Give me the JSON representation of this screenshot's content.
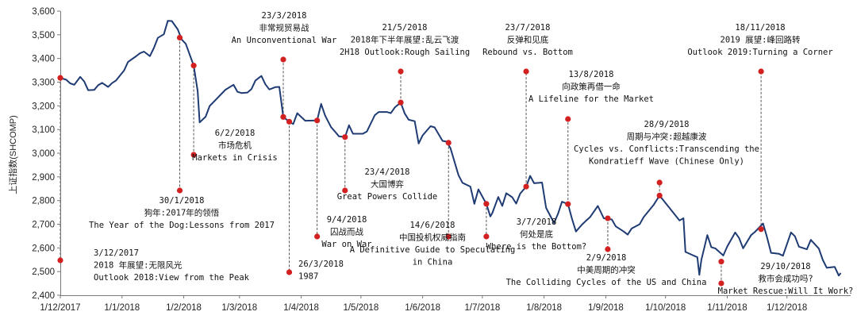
{
  "chart_data": {
    "type": "line",
    "ylabel": "上证指数(SHCOMP)",
    "ylim": [
      2400,
      3600
    ],
    "yticks": [
      2400,
      2500,
      2600,
      2700,
      2800,
      2900,
      3000,
      3100,
      3200,
      3300,
      3400,
      3500,
      3600
    ],
    "ytick_labels": [
      "2,400",
      "2,500",
      "2,600",
      "2,700",
      "2,800",
      "2,900",
      "3,000",
      "3,100",
      "3,200",
      "3,300",
      "3,400",
      "3,500",
      "3,600"
    ],
    "xlim": [
      "2017-12-01",
      "2018-12-31"
    ],
    "xticks": [
      "2017-12-01",
      "2018-01-01",
      "2018-02-01",
      "2018-03-01",
      "2018-04-01",
      "2018-05-01",
      "2018-06-01",
      "2018-07-01",
      "2018-08-01",
      "2018-09-01",
      "2018-10-01",
      "2018-11-01",
      "2018-12-01"
    ],
    "xtick_labels": [
      "1/12/2017",
      "1/1/2018",
      "1/2/2018",
      "1/3/2018",
      "1/4/2018",
      "1/5/2018",
      "1/6/2018",
      "1/7/2018",
      "1/8/2018",
      "1/9/2018",
      "1/10/2018",
      "1/11/2018",
      "1/12/2018"
    ],
    "grid": false,
    "series": [
      {
        "color": "#1f3b73",
        "x": [
          "2017-12-01",
          "2017-12-04",
          "2017-12-06",
          "2017-12-08",
          "2017-12-11",
          "2017-12-13",
          "2017-12-15",
          "2017-12-18",
          "2017-12-20",
          "2017-12-22",
          "2017-12-25",
          "2017-12-27",
          "2017-12-29",
          "2018-01-02",
          "2018-01-04",
          "2018-01-08",
          "2018-01-10",
          "2018-01-12",
          "2018-01-15",
          "2018-01-17",
          "2018-01-19",
          "2018-01-22",
          "2018-01-24",
          "2018-01-26",
          "2018-01-29",
          "2018-01-31",
          "2018-02-02",
          "2018-02-06",
          "2018-02-08",
          "2018-02-09",
          "2018-02-12",
          "2018-02-14",
          "2018-02-22",
          "2018-02-26",
          "2018-02-28",
          "2018-03-02",
          "2018-03-05",
          "2018-03-07",
          "2018-03-09",
          "2018-03-12",
          "2018-03-14",
          "2018-03-16",
          "2018-03-19",
          "2018-03-21",
          "2018-03-23",
          "2018-03-26",
          "2018-03-28",
          "2018-03-30",
          "2018-04-03",
          "2018-04-09",
          "2018-04-11",
          "2018-04-13",
          "2018-04-16",
          "2018-04-18",
          "2018-04-20",
          "2018-04-23",
          "2018-04-25",
          "2018-04-27",
          "2018-05-02",
          "2018-05-04",
          "2018-05-08",
          "2018-05-10",
          "2018-05-14",
          "2018-05-16",
          "2018-05-18",
          "2018-05-21",
          "2018-05-23",
          "2018-05-25",
          "2018-05-28",
          "2018-05-30",
          "2018-06-01",
          "2018-06-05",
          "2018-06-07",
          "2018-06-11",
          "2018-06-13",
          "2018-06-15",
          "2018-06-19",
          "2018-06-21",
          "2018-06-25",
          "2018-06-27",
          "2018-06-29",
          "2018-07-03",
          "2018-07-05",
          "2018-07-06",
          "2018-07-09",
          "2018-07-11",
          "2018-07-13",
          "2018-07-16",
          "2018-07-18",
          "2018-07-20",
          "2018-07-23",
          "2018-07-25",
          "2018-07-27",
          "2018-07-31",
          "2018-08-02",
          "2018-08-06",
          "2018-08-08",
          "2018-08-10",
          "2018-08-13",
          "2018-08-15",
          "2018-08-17",
          "2018-08-20",
          "2018-08-22",
          "2018-08-24",
          "2018-08-28",
          "2018-08-31",
          "2018-09-04",
          "2018-09-06",
          "2018-09-10",
          "2018-09-12",
          "2018-09-14",
          "2018-09-18",
          "2018-09-20",
          "2018-09-25",
          "2018-09-28",
          "2018-10-08",
          "2018-10-10",
          "2018-10-11",
          "2018-10-15",
          "2018-10-17",
          "2018-10-18",
          "2018-10-19",
          "2018-10-22",
          "2018-10-24",
          "2018-10-26",
          "2018-10-30",
          "2018-11-01",
          "2018-11-05",
          "2018-11-07",
          "2018-11-09",
          "2018-11-13",
          "2018-11-15",
          "2018-11-19",
          "2018-11-21",
          "2018-11-23",
          "2018-11-27",
          "2018-11-29",
          "2018-12-03",
          "2018-12-05",
          "2018-12-07",
          "2018-12-11",
          "2018-12-13",
          "2018-12-17",
          "2018-12-19",
          "2018-12-21",
          "2018-12-25",
          "2018-12-27",
          "2018-12-28"
        ],
        "values": [
          3318,
          3310,
          3295,
          3289,
          3322,
          3303,
          3266,
          3267,
          3287,
          3297,
          3280,
          3296,
          3307,
          3349,
          3385,
          3409,
          3422,
          3429,
          3410,
          3444,
          3487,
          3502,
          3559,
          3558,
          3523,
          3480,
          3462,
          3370,
          3262,
          3130,
          3154,
          3199,
          3268,
          3289,
          3259,
          3254,
          3256,
          3271,
          3307,
          3326,
          3291,
          3269,
          3279,
          3280,
          3153,
          3133,
          3123,
          3169,
          3137,
          3138,
          3208,
          3159,
          3110,
          3091,
          3071,
          3068,
          3118,
          3082,
          3082,
          3092,
          3161,
          3174,
          3174,
          3169,
          3193,
          3214,
          3168,
          3141,
          3135,
          3041,
          3075,
          3114,
          3109,
          3052,
          3049,
          3021,
          2907,
          2875,
          2859,
          2786,
          2847,
          2786,
          2733,
          2747,
          2815,
          2777,
          2831,
          2814,
          2787,
          2829,
          2859,
          2904,
          2873,
          2876,
          2769,
          2705,
          2744,
          2795,
          2785,
          2723,
          2669,
          2698,
          2714,
          2729,
          2777,
          2725,
          2720,
          2691,
          2669,
          2656,
          2682,
          2700,
          2730,
          2781,
          2821,
          2716,
          2725,
          2583,
          2568,
          2561,
          2486,
          2550,
          2654,
          2603,
          2598,
          2568,
          2606,
          2665,
          2641,
          2598,
          2654,
          2668,
          2703,
          2645,
          2579,
          2575,
          2567,
          2665,
          2649,
          2605,
          2594,
          2634,
          2597,
          2549,
          2516,
          2520,
          2483,
          2494
        ]
      }
    ],
    "annotations": [
      {
        "date": "2017-12-01",
        "point": 3318,
        "text_lines": [
          "3/12/2017",
          "2018 年展望:无限风光",
          "Outlook 2018:View from the Peak"
        ]
      },
      {
        "date": "2018-01-30",
        "point": 3488,
        "text_lines": [
          "30/1/2018",
          "狗年:2017年的领悟",
          "The Year of the Dog:Lessons from 2017"
        ]
      },
      {
        "date": "2018-02-06",
        "point": 3370,
        "text_lines": [
          "6/2/2018",
          "市场危机",
          "Markets in Crisis"
        ]
      },
      {
        "date": "2018-03-23",
        "point": 3153,
        "text_lines": [
          "23/3/2018",
          "非常规贸易战",
          "An Unconventional War"
        ]
      },
      {
        "date": "2018-03-26",
        "point": 3133,
        "text_lines": [
          "26/3/2018",
          "1987"
        ]
      },
      {
        "date": "2018-04-09",
        "point": 3138,
        "text_lines": [
          "9/4/2018",
          "囚战而战",
          "War on War"
        ]
      },
      {
        "date": "2018-04-23",
        "point": 3068,
        "text_lines": [
          "23/4/2018",
          "大国博弈",
          "Great Powers Collide"
        ]
      },
      {
        "date": "2018-05-21",
        "point": 3214,
        "text_lines": [
          "21/5/2018",
          "2018年下半年展望:乱云飞渡",
          "2H18 Outlook:Rough Sailing"
        ]
      },
      {
        "date": "2018-06-14",
        "point": 3044,
        "text_lines": [
          "14/6/2018",
          "中国投机权威指南",
          "A Definitive Guide to Speculating",
          "in China"
        ]
      },
      {
        "date": "2018-07-03",
        "point": 2786,
        "text_lines": [
          "3/7/2018",
          "何处是底",
          "Where is the Bottom?"
        ]
      },
      {
        "date": "2018-07-23",
        "point": 2859,
        "text_lines": [
          "23/7/2018",
          "反弹和见底",
          "Rebound vs. Bottom"
        ]
      },
      {
        "date": "2018-08-13",
        "point": 2785,
        "text_lines": [
          "13/8/2018",
          "向政策再借一命",
          "A Lifeline for the Market"
        ]
      },
      {
        "date": "2018-09-02",
        "point": 2725,
        "text_lines": [
          "2/9/2018",
          "中美周期的冲突",
          "The Colliding Cycles of the US and China"
        ]
      },
      {
        "date": "2018-09-28",
        "point": 2821,
        "text_lines": [
          "28/9/2018",
          "周期与冲突:超越康波",
          "Cycles vs. Conflicts:Transcending the",
          "Kondratieff Wave (Chinese Only)"
        ]
      },
      {
        "date": "2018-10-29",
        "point": 2542,
        "text_lines": [
          "29/10/2018",
          "救市会成功吗?",
          "Market Rescue:Will It Work?"
        ]
      },
      {
        "date": "2018-11-18",
        "point": 2679,
        "text_lines": [
          "18/11/2018",
          "2019 展望:峰回路转",
          "Outlook 2019:Turning a Corner"
        ]
      }
    ]
  }
}
